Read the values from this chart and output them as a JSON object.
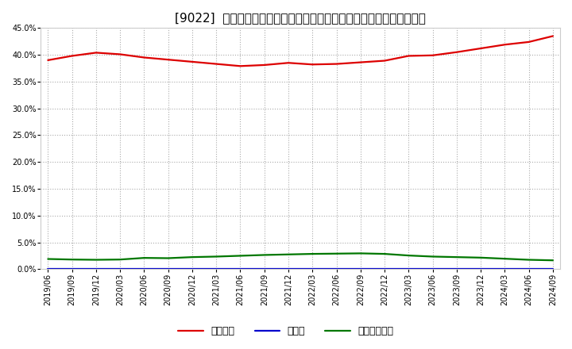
{
  "title": "[9022]  自己資本、のれん、繰延税金資産の総資産に対する比率の推移",
  "x_labels": [
    "2019/06",
    "2019/09",
    "2019/12",
    "2020/03",
    "2020/06",
    "2020/09",
    "2020/12",
    "2021/03",
    "2021/06",
    "2021/09",
    "2021/12",
    "2022/03",
    "2022/06",
    "2022/09",
    "2022/12",
    "2023/03",
    "2023/06",
    "2023/09",
    "2023/12",
    "2024/03",
    "2024/06",
    "2024/09"
  ],
  "jikoshihon": [
    39.0,
    39.8,
    40.4,
    40.1,
    39.5,
    39.1,
    38.7,
    38.3,
    37.9,
    38.1,
    38.5,
    38.2,
    38.3,
    38.6,
    38.9,
    39.8,
    39.9,
    40.5,
    41.2,
    41.9,
    42.4,
    43.5
  ],
  "noren": [
    0.0,
    0.0,
    0.0,
    0.0,
    0.0,
    0.0,
    0.0,
    0.0,
    0.0,
    0.0,
    0.0,
    0.0,
    0.0,
    0.0,
    0.0,
    0.0,
    0.0,
    0.0,
    0.0,
    0.0,
    0.0,
    0.0
  ],
  "kurinobizeikin": [
    1.9,
    1.8,
    1.75,
    1.8,
    2.1,
    2.05,
    2.25,
    2.35,
    2.5,
    2.65,
    2.75,
    2.85,
    2.9,
    2.95,
    2.85,
    2.55,
    2.35,
    2.25,
    2.15,
    1.95,
    1.75,
    1.65
  ],
  "jikoshihon_color": "#dd0000",
  "noren_color": "#0000cc",
  "kurinobizeikin_color": "#007700",
  "background_color": "#ffffff",
  "grid_color": "#aaaaaa",
  "ylim": [
    0.0,
    45.0
  ],
  "yticks": [
    0.0,
    5.0,
    10.0,
    15.0,
    20.0,
    25.0,
    30.0,
    35.0,
    40.0,
    45.0
  ],
  "legend_labels": [
    "自己資本",
    "のれん",
    "繰延税金資産"
  ],
  "title_fontsize": 11,
  "tick_fontsize": 7,
  "legend_fontsize": 9
}
